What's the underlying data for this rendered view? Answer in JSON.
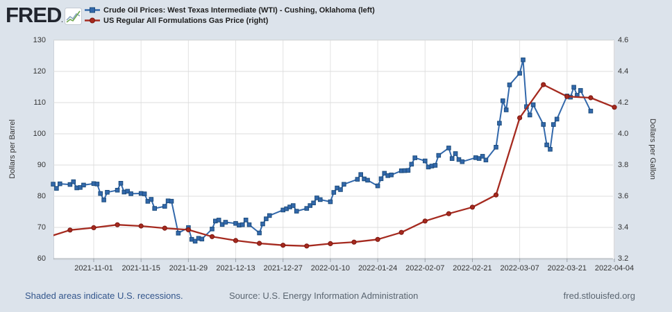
{
  "header": {
    "logo_text": "FRED",
    "legend": [
      {
        "label": "Crude Oil Prices: West Texas Intermediate (WTI) - Cushing, Oklahoma (left)",
        "color": "#3268ab",
        "edge": "#1c4c7c",
        "marker": "square"
      },
      {
        "label": "US Regular All Formulations Gas Price (right)",
        "color": "#a52a1f",
        "edge": "#7c150e",
        "marker": "circle"
      }
    ]
  },
  "footer": {
    "recession_note": "Shaded areas indicate U.S. recessions.",
    "source": "Source: U.S. Energy Information Administration",
    "site": "fred.stlouisfed.org"
  },
  "chart_data": {
    "type": "line",
    "grid": true,
    "background": "#ffffff",
    "page_background": "#dce3eb",
    "left_axis": {
      "label": "Dollars per Barrel",
      "range": [
        60,
        130
      ],
      "ticks": [
        60,
        70,
        80,
        90,
        100,
        110,
        120,
        130
      ]
    },
    "right_axis": {
      "label": "Dollars per Gallon",
      "range": [
        3.2,
        4.6
      ],
      "ticks": [
        3.2,
        3.4,
        3.6,
        3.8,
        4.0,
        4.2,
        4.4,
        4.6
      ]
    },
    "x_axis": {
      "start": "2021-10-20",
      "end": "2022-04-04",
      "tick_labels": [
        "2021-11-01",
        "2021-11-15",
        "2021-11-29",
        "2021-12-13",
        "2021-12-27",
        "2022-01-10",
        "2022-01-24",
        "2022-02-07",
        "2022-02-21",
        "2022-03-07",
        "2022-03-21",
        "2022-04-04"
      ]
    },
    "series": [
      {
        "name": "Crude Oil Prices: West Texas Intermediate (WTI) - Cushing, Oklahoma (left)",
        "axis": "left",
        "color": "#3268ab",
        "edge": "#1c4c7c",
        "marker": "square",
        "points": [
          [
            "2021-10-20",
            83.87
          ],
          [
            "2021-10-21",
            82.5
          ],
          [
            "2021-10-22",
            83.98
          ],
          [
            "2021-10-25",
            83.76
          ],
          [
            "2021-10-26",
            84.65
          ],
          [
            "2021-10-27",
            82.66
          ],
          [
            "2021-10-28",
            82.81
          ],
          [
            "2021-10-29",
            83.57
          ],
          [
            "2021-11-01",
            84.05
          ],
          [
            "2021-11-02",
            83.91
          ],
          [
            "2021-11-03",
            80.86
          ],
          [
            "2021-11-04",
            78.81
          ],
          [
            "2021-11-05",
            81.27
          ],
          [
            "2021-11-08",
            81.93
          ],
          [
            "2021-11-09",
            84.15
          ],
          [
            "2021-11-10",
            81.34
          ],
          [
            "2021-11-11",
            81.59
          ],
          [
            "2021-11-12",
            80.79
          ],
          [
            "2021-11-15",
            80.88
          ],
          [
            "2021-11-16",
            80.76
          ],
          [
            "2021-11-17",
            78.36
          ],
          [
            "2021-11-18",
            79.01
          ],
          [
            "2021-11-19",
            76.1
          ],
          [
            "2021-11-22",
            76.75
          ],
          [
            "2021-11-23",
            78.5
          ],
          [
            "2021-11-24",
            78.39
          ],
          [
            "2021-11-26",
            68.15
          ],
          [
            "2021-11-29",
            69.95
          ],
          [
            "2021-11-30",
            66.18
          ],
          [
            "2021-12-01",
            65.57
          ],
          [
            "2021-12-02",
            66.5
          ],
          [
            "2021-12-03",
            66.26
          ],
          [
            "2021-12-06",
            69.49
          ],
          [
            "2021-12-07",
            72.05
          ],
          [
            "2021-12-08",
            72.36
          ],
          [
            "2021-12-09",
            70.94
          ],
          [
            "2021-12-10",
            71.67
          ],
          [
            "2021-12-13",
            71.29
          ],
          [
            "2021-12-14",
            70.73
          ],
          [
            "2021-12-15",
            70.87
          ],
          [
            "2021-12-16",
            72.38
          ],
          [
            "2021-12-17",
            70.86
          ],
          [
            "2021-12-20",
            68.23
          ],
          [
            "2021-12-21",
            71.12
          ],
          [
            "2021-12-22",
            72.76
          ],
          [
            "2021-12-23",
            73.79
          ],
          [
            "2021-12-27",
            75.57
          ],
          [
            "2021-12-28",
            75.98
          ],
          [
            "2021-12-29",
            76.56
          ],
          [
            "2021-12-30",
            76.99
          ],
          [
            "2021-12-31",
            75.21
          ],
          [
            "2022-01-03",
            76.08
          ],
          [
            "2022-01-04",
            76.99
          ],
          [
            "2022-01-05",
            77.85
          ],
          [
            "2022-01-06",
            79.46
          ],
          [
            "2022-01-07",
            78.9
          ],
          [
            "2022-01-10",
            78.23
          ],
          [
            "2022-01-11",
            81.22
          ],
          [
            "2022-01-12",
            82.64
          ],
          [
            "2022-01-13",
            82.12
          ],
          [
            "2022-01-14",
            83.82
          ],
          [
            "2022-01-18",
            85.43
          ],
          [
            "2022-01-19",
            86.96
          ],
          [
            "2022-01-20",
            85.55
          ],
          [
            "2022-01-21",
            85.14
          ],
          [
            "2022-01-24",
            83.31
          ],
          [
            "2022-01-25",
            85.6
          ],
          [
            "2022-01-26",
            87.35
          ],
          [
            "2022-01-27",
            86.61
          ],
          [
            "2022-01-28",
            86.82
          ],
          [
            "2022-01-31",
            88.15
          ],
          [
            "2022-02-01",
            88.2
          ],
          [
            "2022-02-02",
            88.26
          ],
          [
            "2022-02-03",
            90.27
          ],
          [
            "2022-02-04",
            92.31
          ],
          [
            "2022-02-07",
            91.32
          ],
          [
            "2022-02-08",
            89.36
          ],
          [
            "2022-02-09",
            89.66
          ],
          [
            "2022-02-10",
            89.88
          ],
          [
            "2022-02-11",
            93.1
          ],
          [
            "2022-02-14",
            95.46
          ],
          [
            "2022-02-15",
            92.07
          ],
          [
            "2022-02-16",
            93.66
          ],
          [
            "2022-02-17",
            91.76
          ],
          [
            "2022-02-18",
            91.07
          ],
          [
            "2022-02-22",
            92.35
          ],
          [
            "2022-02-23",
            92.1
          ],
          [
            "2022-02-24",
            92.81
          ],
          [
            "2022-02-25",
            91.59
          ],
          [
            "2022-02-28",
            95.72
          ],
          [
            "2022-03-01",
            103.41
          ],
          [
            "2022-03-02",
            110.6
          ],
          [
            "2022-03-03",
            107.67
          ],
          [
            "2022-03-04",
            115.68
          ],
          [
            "2022-03-07",
            119.4
          ],
          [
            "2022-03-08",
            123.7
          ],
          [
            "2022-03-09",
            108.7
          ],
          [
            "2022-03-10",
            106.02
          ],
          [
            "2022-03-11",
            109.33
          ],
          [
            "2022-03-14",
            103.01
          ],
          [
            "2022-03-15",
            96.44
          ],
          [
            "2022-03-16",
            95.04
          ],
          [
            "2022-03-17",
            102.98
          ],
          [
            "2022-03-18",
            104.7
          ],
          [
            "2022-03-21",
            112.12
          ],
          [
            "2022-03-22",
            111.76
          ],
          [
            "2022-03-23",
            114.93
          ],
          [
            "2022-03-24",
            112.34
          ],
          [
            "2022-03-25",
            113.9
          ],
          [
            "2022-03-28",
            107.3
          ]
        ]
      },
      {
        "name": "US Regular All Formulations Gas Price (right)",
        "axis": "right",
        "color": "#a52a1f",
        "edge": "#7c150e",
        "marker": "circle",
        "points": [
          [
            "2021-10-18",
            3.335
          ],
          [
            "2021-10-25",
            3.383
          ],
          [
            "2021-11-01",
            3.398
          ],
          [
            "2021-11-08",
            3.417
          ],
          [
            "2021-11-15",
            3.409
          ],
          [
            "2021-11-22",
            3.395
          ],
          [
            "2021-11-29",
            3.385
          ],
          [
            "2021-12-06",
            3.341
          ],
          [
            "2021-12-13",
            3.316
          ],
          [
            "2021-12-20",
            3.298
          ],
          [
            "2021-12-27",
            3.286
          ],
          [
            "2022-01-03",
            3.281
          ],
          [
            "2022-01-10",
            3.296
          ],
          [
            "2022-01-17",
            3.306
          ],
          [
            "2022-01-24",
            3.323
          ],
          [
            "2022-01-31",
            3.368
          ],
          [
            "2022-02-07",
            3.441
          ],
          [
            "2022-02-14",
            3.488
          ],
          [
            "2022-02-21",
            3.53
          ],
          [
            "2022-02-28",
            3.608
          ],
          [
            "2022-03-07",
            4.102
          ],
          [
            "2022-03-14",
            4.315
          ],
          [
            "2022-03-21",
            4.239
          ],
          [
            "2022-03-28",
            4.231
          ],
          [
            "2022-04-04",
            4.17
          ]
        ]
      }
    ]
  }
}
